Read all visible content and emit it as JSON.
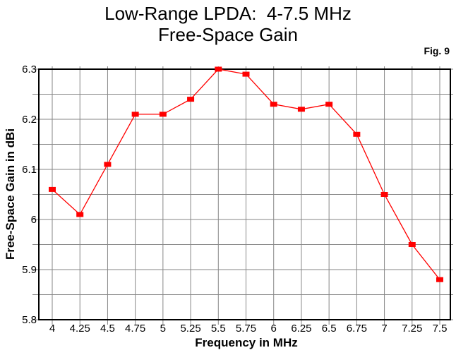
{
  "figure": {
    "title_line1": "Low-Range LPDA:  4-7.5 MHz",
    "title_line2": "Free-Space Gain",
    "fig_label": "Fig. 9"
  },
  "chart_data": {
    "type": "line",
    "title": "Low-Range LPDA: 4-7.5 MHz Free-Space Gain",
    "xlabel": "Frequency in MHz",
    "ylabel": "Free-Space Gain in dBi",
    "x": [
      4,
      4.25,
      4.5,
      4.75,
      5,
      5.25,
      5.5,
      5.75,
      6,
      6.25,
      6.5,
      6.75,
      7,
      7.25,
      7.5
    ],
    "y": [
      6.06,
      6.01,
      6.11,
      6.21,
      6.21,
      6.24,
      6.3,
      6.29,
      6.23,
      6.22,
      6.23,
      6.17,
      6.05,
      5.95,
      5.88
    ],
    "xtick_labels": [
      "4",
      "4.25",
      "4.5",
      "4.75",
      "5",
      "5.25",
      "5.5",
      "5.75",
      "6",
      "6.25",
      "6.5",
      "6.75",
      "7",
      "7.25",
      "7.5"
    ],
    "ytick_labels": [
      "6.3",
      "6.2",
      "6.1",
      "6",
      "5.9",
      "5.8"
    ],
    "xlim": [
      4,
      7.5
    ],
    "ylim": [
      5.8,
      6.3
    ],
    "ygrid_step": 0.05,
    "ylabel_step": 0.1,
    "marker": "square",
    "grid": true,
    "legend": "none",
    "colors": {
      "series": "#ff0000",
      "grid": "#868686",
      "axis": "#000000",
      "text": "#000000",
      "background": "#ffffff"
    }
  }
}
